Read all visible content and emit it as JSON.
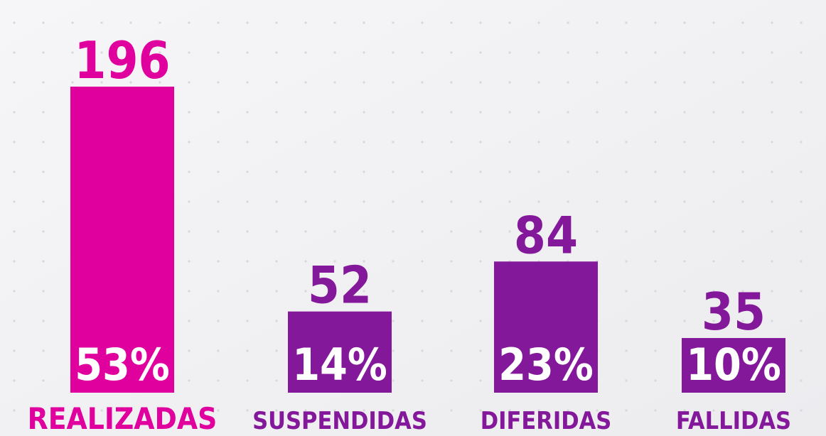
{
  "chart_data": {
    "type": "bar",
    "categories": [
      "REALIZADAS",
      "SUSPENDIDAS",
      "DIFERIDAS",
      "FALLIDAS"
    ],
    "values": [
      196,
      52,
      84,
      35
    ],
    "percent_labels": [
      "53%",
      "14%",
      "23%",
      "10%"
    ],
    "colors": [
      "#e0009e",
      "#84189a",
      "#84189a",
      "#84189a"
    ]
  }
}
